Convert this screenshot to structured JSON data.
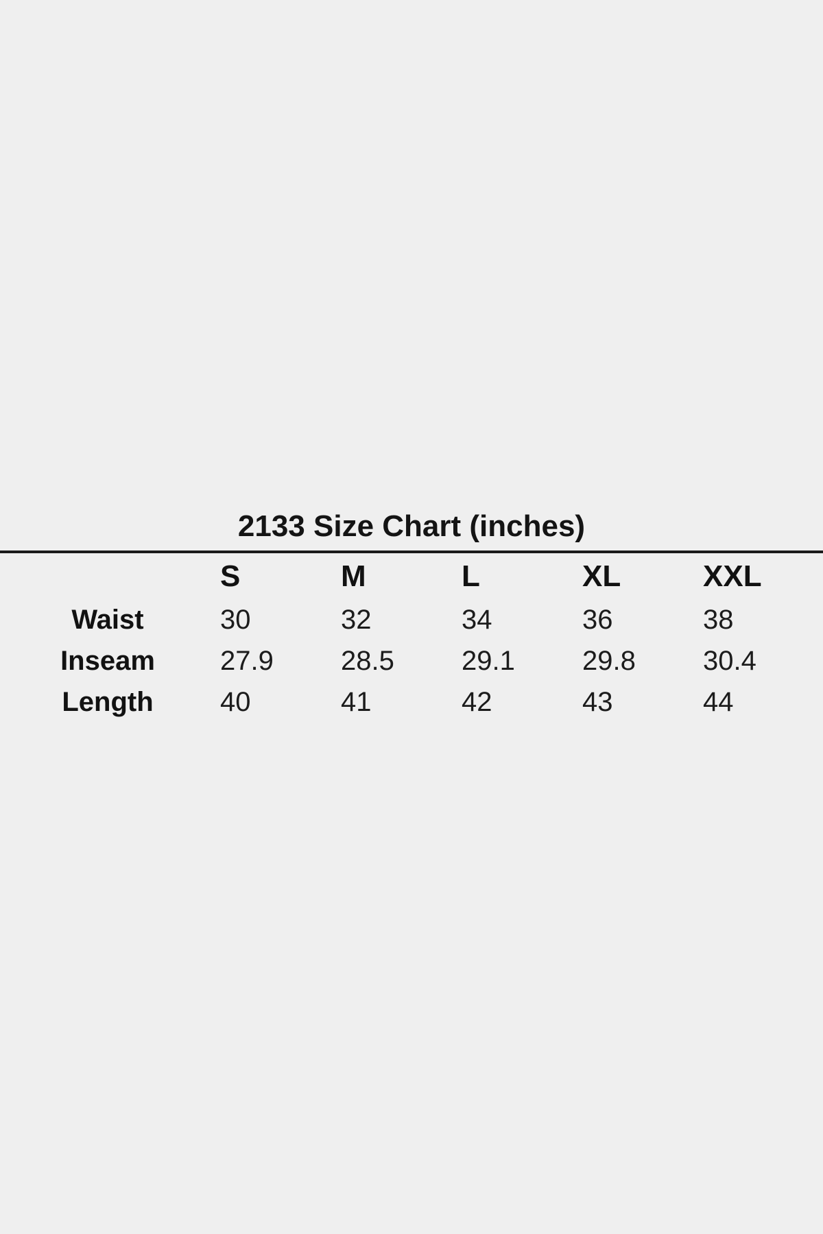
{
  "page": {
    "background_color": "#efefef",
    "text_color": "#161616",
    "rule_color": "#1b1b1b"
  },
  "chart_data": {
    "type": "table",
    "title": "2133 Size Chart (inches)",
    "columns": [
      "",
      "S",
      "M",
      "L",
      "XL",
      "XXL"
    ],
    "rows": [
      {
        "label": "Waist",
        "values": [
          "30",
          "32",
          "34",
          "36",
          "38"
        ]
      },
      {
        "label": "Inseam",
        "values": [
          "27.9",
          "28.5",
          "29.1",
          "29.8",
          "30.4"
        ]
      },
      {
        "label": "Length",
        "values": [
          "40",
          "41",
          "42",
          "43",
          "44"
        ]
      }
    ],
    "layout": {
      "title_position": "top-center",
      "divider": "full-width horizontal rule below title",
      "first_column_align": "center",
      "data_columns_align": "left"
    }
  }
}
